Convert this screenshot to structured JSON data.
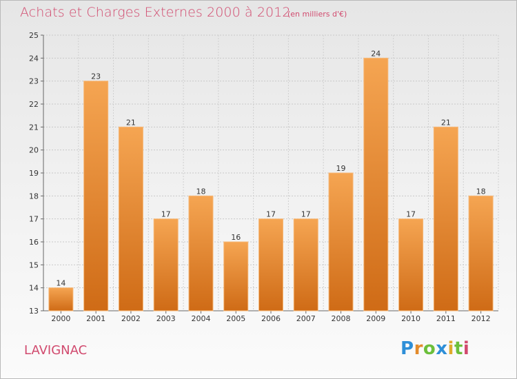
{
  "header": {
    "title": "Achats et Charges Externes 2000 à 2012",
    "subtitle": "(en milliers d'€)"
  },
  "footer": {
    "city": "LAVIGNAC",
    "logo": "Proxiti"
  },
  "colors": {
    "bar_light": "#f5a552",
    "bar_dark": "#cf6b16",
    "title": "#d14a6e"
  },
  "chart_data": {
    "type": "bar",
    "categories": [
      "2000",
      "2001",
      "2002",
      "2003",
      "2004",
      "2005",
      "2006",
      "2007",
      "2008",
      "2009",
      "2010",
      "2011",
      "2012"
    ],
    "values": [
      14,
      23,
      21,
      17,
      18,
      16,
      17,
      17,
      19,
      24,
      17,
      21,
      18
    ],
    "title": "Achats et Charges Externes 2000 à 2012",
    "ylim": [
      13,
      25
    ],
    "yticks": [
      13,
      14,
      15,
      16,
      17,
      18,
      19,
      20,
      21,
      22,
      23,
      24,
      25
    ],
    "grid": true,
    "legend": "none"
  }
}
